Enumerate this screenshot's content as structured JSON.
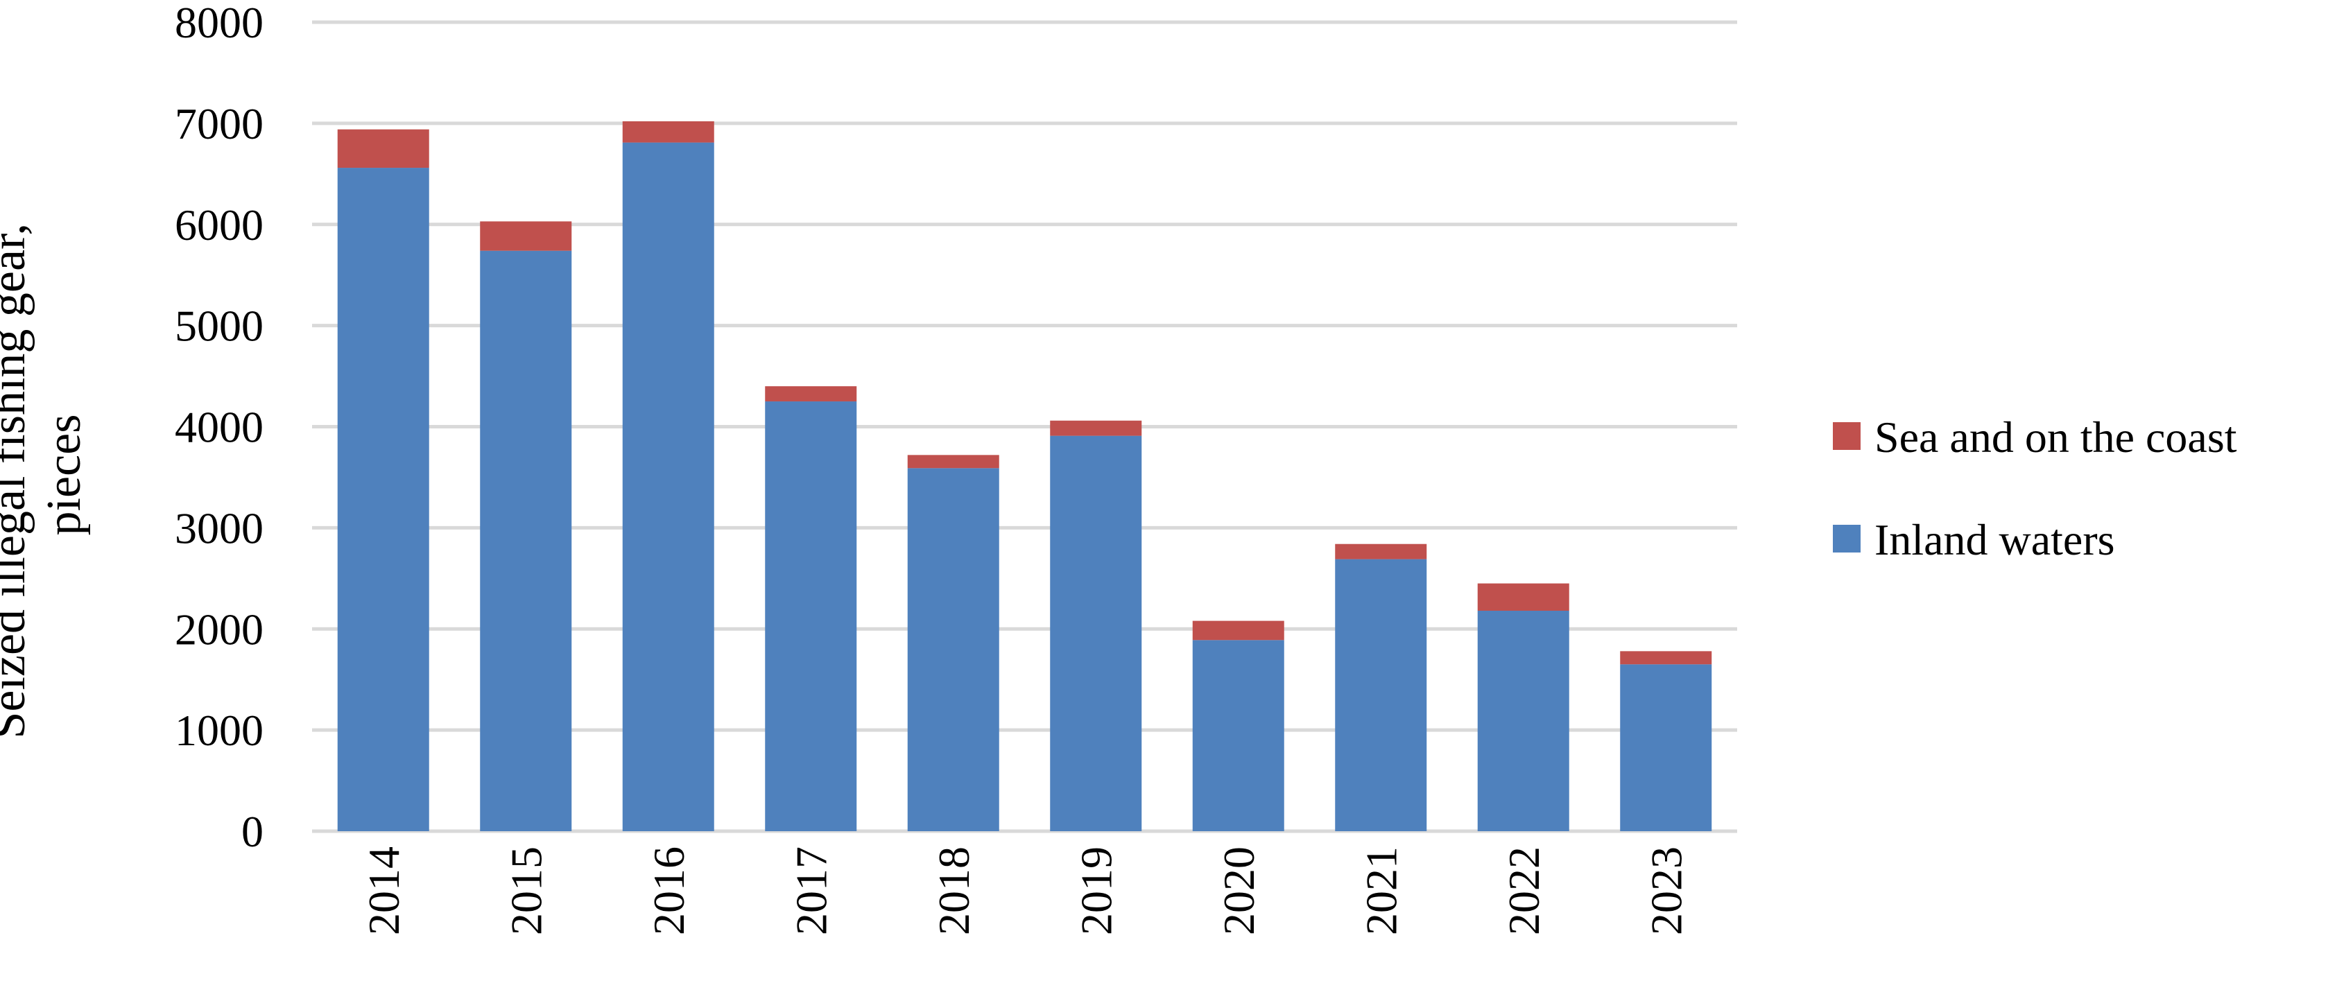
{
  "chart_data": {
    "type": "bar",
    "stacked": true,
    "categories": [
      "2014",
      "2015",
      "2016",
      "2017",
      "2018",
      "2019",
      "2020",
      "2021",
      "2022",
      "2023"
    ],
    "series": [
      {
        "name": "Inland waters",
        "color": "#4f81bd",
        "values": [
          6560,
          5740,
          6810,
          4250,
          3590,
          3910,
          1890,
          2690,
          2180,
          1650
        ]
      },
      {
        "name": "Sea and on the coast",
        "color": "#c0504d",
        "values": [
          380,
          290,
          210,
          150,
          130,
          150,
          190,
          150,
          270,
          130
        ]
      }
    ],
    "title": "",
    "xlabel": "",
    "ylabel_lines": [
      "Seized illegal fishing gear,",
      "pieces"
    ],
    "ylim": [
      0,
      8000
    ],
    "yticks": [
      "0",
      "1000",
      "2000",
      "3000",
      "4000",
      "5000",
      "6000",
      "7000",
      "8000"
    ],
    "grid": true,
    "legend_position": "right",
    "legend": [
      {
        "label": "Sea and on the coast",
        "color": "#c0504d"
      },
      {
        "label": "Inland waters",
        "color": "#4f81bd"
      }
    ]
  }
}
